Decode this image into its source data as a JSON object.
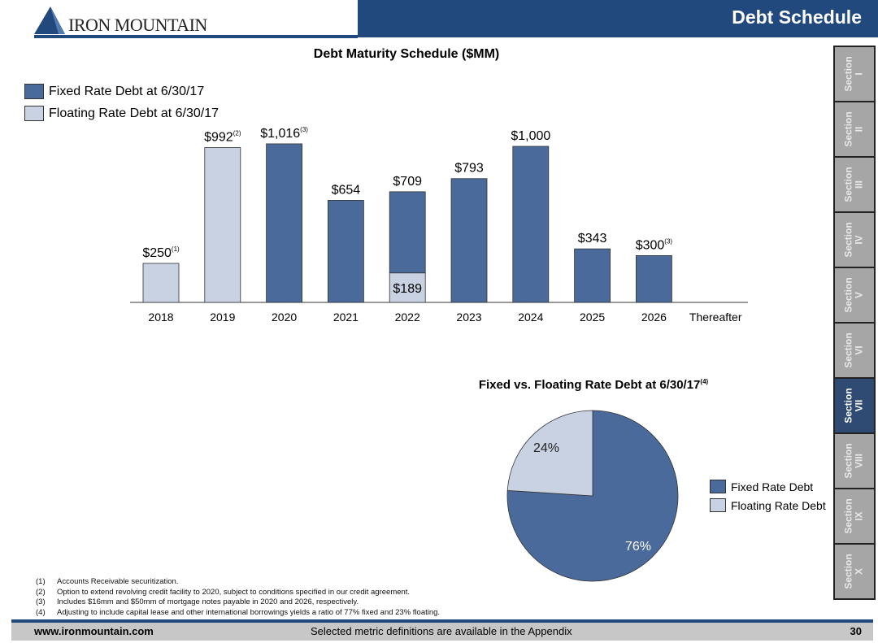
{
  "header": {
    "title": "Debt Schedule",
    "logo": "IRON MOUNTAIN"
  },
  "colors": {
    "fixed": "#4a6a9b",
    "floating": "#c8d2e2",
    "brand": "#22497d"
  },
  "chart_data": [
    {
      "type": "bar",
      "title": "Debt Maturity Schedule ($MM)",
      "stacked": true,
      "categories": [
        "2018",
        "2019",
        "2020",
        "2021",
        "2022",
        "2023",
        "2024",
        "2025",
        "2026",
        "Thereafter"
      ],
      "series": [
        {
          "name": "Fixed Rate Debt at 6/30/17",
          "values": [
            0,
            0,
            1016,
            654,
            520,
            793,
            1000,
            343,
            300,
            0
          ]
        },
        {
          "name": "Floating Rate Debt at 6/30/17",
          "values": [
            250,
            992,
            0,
            0,
            189,
            0,
            0,
            0,
            0,
            0
          ]
        }
      ],
      "labels": [
        "$250",
        "$992",
        "$1,016",
        "$654",
        "$709",
        "$793",
        "$1,000",
        "$343",
        "$300",
        ""
      ],
      "label_notes": [
        "(1)",
        "(2)",
        "(3)",
        "",
        "",
        "",
        "",
        "",
        "(3)",
        ""
      ],
      "inner_labels": {
        "2022": "$189"
      },
      "legend": "top-left",
      "ylim": [
        0,
        1100
      ]
    },
    {
      "type": "pie",
      "title": "Fixed vs. Floating Rate Debt at 6/30/17",
      "title_note": "(4)",
      "slices": [
        {
          "name": "Fixed Rate Debt",
          "value": 76,
          "label": "76%"
        },
        {
          "name": "Floating Rate Debt",
          "value": 24,
          "label": "24%"
        }
      ],
      "legend": "right"
    }
  ],
  "sections": [
    "I",
    "II",
    "III",
    "IV",
    "V",
    "VI",
    "VII",
    "VIII",
    "IX",
    "X"
  ],
  "section_word": "Section",
  "active_section": "VII",
  "footnotes": [
    {
      "num": "(1)",
      "text": "Accounts Receivable securitization."
    },
    {
      "num": "(2)",
      "text": "Option to extend revolving credit facility to 2020, subject to conditions specified in our credit agreement."
    },
    {
      "num": "(3)",
      "text": "Includes $16mm and $50mm of mortgage notes payable in 2020 and 2026, respectively."
    },
    {
      "num": "(4)",
      "text": "Adjusting to include capital lease and other international borrowings yields a ratio of 77% fixed and 23% floating."
    }
  ],
  "footer": {
    "url": "www.ironmountain.com",
    "center": "Selected metric definitions are available in the Appendix",
    "page": "30"
  }
}
